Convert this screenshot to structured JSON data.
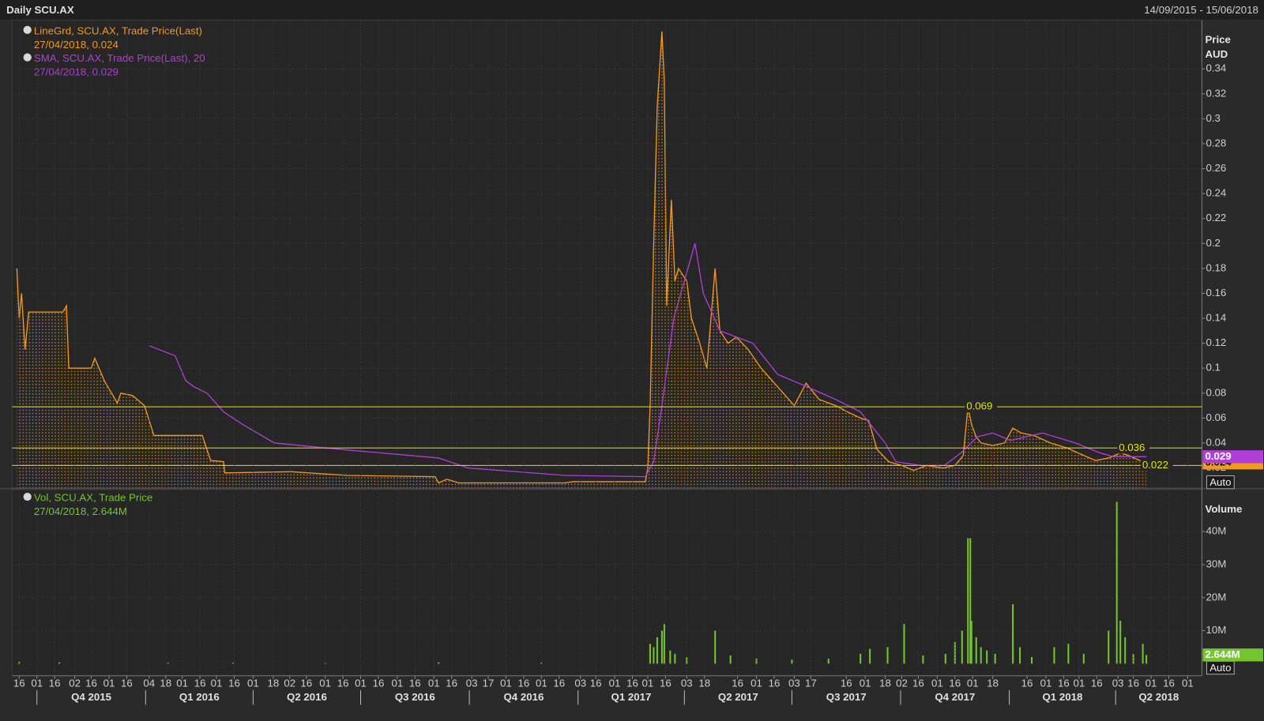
{
  "header": {
    "title": "Daily SCU.AX",
    "date_range": "14/09/2015 - 15/06/2018"
  },
  "chart_data": [
    {
      "type": "line",
      "xlim": [
        "2015-09-10",
        "2018-06-13"
      ],
      "ylim": [
        0.004,
        0.379
      ],
      "yticks": [
        0.02,
        0.04,
        0.06,
        0.08,
        0.1,
        0.12,
        0.14,
        0.16,
        0.18,
        0.2,
        0.22,
        0.24,
        0.26,
        0.28,
        0.3,
        0.32,
        0.34
      ],
      "ylabel": "Price",
      "yunit": "AUD",
      "grid": true,
      "scale_button": "Auto",
      "levels": [
        0.069,
        0.036,
        0.022
      ],
      "level_color": "#e6e600",
      "series": [
        {
          "name": "LineGrd, SCU.AX, Trade Price(Last)",
          "legend_value": "27/04/2018, 0.024",
          "color": "#f39a1e",
          "area": true,
          "last_value": 0.024,
          "x": [
            "2015-09-14",
            "2015-09-16",
            "2015-09-18",
            "2015-09-21",
            "2015-09-24",
            "2015-10-23",
            "2015-10-26",
            "2015-10-28",
            "2015-11-16",
            "2015-11-19",
            "2015-11-27",
            "2015-12-08",
            "2015-12-11",
            "2015-12-21",
            "2015-12-31",
            "2016-01-08",
            "2016-02-18",
            "2016-02-25",
            "2016-03-07",
            "2016-03-08",
            "2016-05-03",
            "2016-06-20",
            "2016-09-02",
            "2016-09-05",
            "2016-09-12",
            "2016-09-22",
            "2016-12-21",
            "2016-12-28",
            "2017-02-27",
            "2017-03-01",
            "2017-03-03",
            "2017-03-06",
            "2017-03-09",
            "2017-03-13",
            "2017-03-15",
            "2017-03-17",
            "2017-03-21",
            "2017-03-24",
            "2017-03-27",
            "2017-04-03",
            "2017-04-07",
            "2017-04-14",
            "2017-04-20",
            "2017-04-27",
            "2017-05-01",
            "2017-05-08",
            "2017-05-15",
            "2017-05-25",
            "2017-06-05",
            "2017-06-19",
            "2017-07-03",
            "2017-07-13",
            "2017-07-24",
            "2017-08-07",
            "2017-08-17",
            "2017-08-28",
            "2017-09-04",
            "2017-09-11",
            "2017-09-21",
            "2017-10-02",
            "2017-10-12",
            "2017-10-23",
            "2017-11-06",
            "2017-11-16",
            "2017-11-23",
            "2017-11-27",
            "2017-11-30",
            "2017-12-04",
            "2017-12-08",
            "2017-12-18",
            "2017-12-28",
            "2018-01-04",
            "2018-01-11",
            "2018-01-22",
            "2018-02-05",
            "2018-02-19",
            "2018-03-05",
            "2018-03-15",
            "2018-03-26",
            "2018-04-05",
            "2018-04-12",
            "2018-04-19",
            "2018-04-27"
          ],
          "values": [
            0.18,
            0.14,
            0.16,
            0.115,
            0.145,
            0.145,
            0.15,
            0.1,
            0.1,
            0.108,
            0.09,
            0.072,
            0.08,
            0.078,
            0.07,
            0.046,
            0.046,
            0.026,
            0.025,
            0.016,
            0.017,
            0.014,
            0.013,
            0.008,
            0.011,
            0.008,
            0.008,
            0.009,
            0.009,
            0.02,
            0.07,
            0.2,
            0.31,
            0.37,
            0.33,
            0.15,
            0.235,
            0.17,
            0.18,
            0.17,
            0.14,
            0.12,
            0.1,
            0.18,
            0.13,
            0.12,
            0.125,
            0.115,
            0.1,
            0.085,
            0.07,
            0.088,
            0.075,
            0.07,
            0.065,
            0.06,
            0.058,
            0.035,
            0.025,
            0.022,
            0.018,
            0.022,
            0.02,
            0.022,
            0.03,
            0.069,
            0.055,
            0.045,
            0.04,
            0.038,
            0.04,
            0.052,
            0.048,
            0.046,
            0.04,
            0.036,
            0.03,
            0.026,
            0.028,
            0.032,
            0.03,
            0.027,
            0.024
          ]
        },
        {
          "name": "SMA, SCU.AX, Trade Price(Last), 20",
          "legend_value": "27/04/2018, 0.029",
          "color": "#b03fd6",
          "last_value": 0.029,
          "x": [
            "2016-01-04",
            "2016-01-26",
            "2016-02-04",
            "2016-02-11",
            "2016-02-22",
            "2016-03-07",
            "2016-03-23",
            "2016-04-19",
            "2016-06-13",
            "2016-09-05",
            "2016-09-30",
            "2016-12-21",
            "2017-02-27",
            "2017-03-06",
            "2017-03-13",
            "2017-03-23",
            "2017-04-10",
            "2017-04-17",
            "2017-05-01",
            "2017-05-29",
            "2017-06-19",
            "2017-07-14",
            "2017-08-07",
            "2017-08-28",
            "2017-09-18",
            "2017-09-27",
            "2017-10-18",
            "2017-11-07",
            "2017-11-21",
            "2017-12-05",
            "2017-12-18",
            "2018-01-02",
            "2018-01-29",
            "2018-02-26",
            "2018-03-19",
            "2018-03-30",
            "2018-04-27"
          ],
          "values": [
            0.118,
            0.11,
            0.09,
            0.085,
            0.08,
            0.065,
            0.055,
            0.04,
            0.035,
            0.028,
            0.02,
            0.014,
            0.013,
            0.025,
            0.07,
            0.14,
            0.2,
            0.16,
            0.13,
            0.12,
            0.095,
            0.085,
            0.075,
            0.065,
            0.04,
            0.025,
            0.022,
            0.022,
            0.032,
            0.045,
            0.048,
            0.042,
            0.048,
            0.04,
            0.032,
            0.029,
            0.029
          ]
        }
      ]
    },
    {
      "type": "bar",
      "xlim": [
        "2015-09-10",
        "2018-06-13"
      ],
      "ylim": [
        0,
        52000000
      ],
      "yticks": [
        {
          "value": 10000000,
          "label": "10M"
        },
        {
          "value": 20000000,
          "label": "20M"
        },
        {
          "value": 30000000,
          "label": "30M"
        },
        {
          "value": 40000000,
          "label": "40M"
        }
      ],
      "ylabel": "Volume",
      "grid": true,
      "scale_button": "Auto",
      "xticks": [
        {
          "value": "2015-09-16",
          "label": "16"
        },
        {
          "value": "2015-10-01",
          "label": "01"
        },
        {
          "value": "2015-10-16",
          "label": "16"
        },
        {
          "value": "2015-11-02",
          "label": "02"
        },
        {
          "value": "2015-11-16",
          "label": "16"
        },
        {
          "value": "2015-12-01",
          "label": "01"
        },
        {
          "value": "2015-12-16",
          "label": "16"
        },
        {
          "value": "2016-01-04",
          "label": "04"
        },
        {
          "value": "2016-01-18",
          "label": "18"
        },
        {
          "value": "2016-02-01",
          "label": "01"
        },
        {
          "value": "2016-02-16",
          "label": "16"
        },
        {
          "value": "2016-03-01",
          "label": "01"
        },
        {
          "value": "2016-03-16",
          "label": "16"
        },
        {
          "value": "2016-04-01",
          "label": "01"
        },
        {
          "value": "2016-04-18",
          "label": "18"
        },
        {
          "value": "2016-05-02",
          "label": "02"
        },
        {
          "value": "2016-05-16",
          "label": "16"
        },
        {
          "value": "2016-06-01",
          "label": "01"
        },
        {
          "value": "2016-06-16",
          "label": "16"
        },
        {
          "value": "2016-07-01",
          "label": "01"
        },
        {
          "value": "2016-07-16",
          "label": "16"
        },
        {
          "value": "2016-08-01",
          "label": "01"
        },
        {
          "value": "2016-08-16",
          "label": "16"
        },
        {
          "value": "2016-09-01",
          "label": "01"
        },
        {
          "value": "2016-09-16",
          "label": "16"
        },
        {
          "value": "2016-10-03",
          "label": "03"
        },
        {
          "value": "2016-10-17",
          "label": "17"
        },
        {
          "value": "2016-11-01",
          "label": "01"
        },
        {
          "value": "2016-11-16",
          "label": "16"
        },
        {
          "value": "2016-12-01",
          "label": "01"
        },
        {
          "value": "2016-12-16",
          "label": "16"
        },
        {
          "value": "2017-01-03",
          "label": "03"
        },
        {
          "value": "2017-01-16",
          "label": "16"
        },
        {
          "value": "2017-02-01",
          "label": "01"
        },
        {
          "value": "2017-02-16",
          "label": "16"
        },
        {
          "value": "2017-03-01",
          "label": "01"
        },
        {
          "value": "2017-03-16",
          "label": "16"
        },
        {
          "value": "2017-04-03",
          "label": "03"
        },
        {
          "value": "2017-04-18",
          "label": "18"
        },
        {
          "value": "2017-05-16",
          "label": "16"
        },
        {
          "value": "2017-06-01",
          "label": "01"
        },
        {
          "value": "2017-06-16",
          "label": "16"
        },
        {
          "value": "2017-07-03",
          "label": "03"
        },
        {
          "value": "2017-07-17",
          "label": "17"
        },
        {
          "value": "2017-08-16",
          "label": "16"
        },
        {
          "value": "2017-09-01",
          "label": "01"
        },
        {
          "value": "2017-09-18",
          "label": "18"
        },
        {
          "value": "2017-10-02",
          "label": "02"
        },
        {
          "value": "2017-10-16",
          "label": "16"
        },
        {
          "value": "2017-11-01",
          "label": "01"
        },
        {
          "value": "2017-11-16",
          "label": "16"
        },
        {
          "value": "2017-12-01",
          "label": "01"
        },
        {
          "value": "2017-12-18",
          "label": "18"
        },
        {
          "value": "2018-01-16",
          "label": "16"
        },
        {
          "value": "2018-02-01",
          "label": "01"
        },
        {
          "value": "2018-02-16",
          "label": "16"
        },
        {
          "value": "2018-03-01",
          "label": "01"
        },
        {
          "value": "2018-03-16",
          "label": "16"
        },
        {
          "value": "2018-04-03",
          "label": "03"
        },
        {
          "value": "2018-04-16",
          "label": "16"
        },
        {
          "value": "2018-05-01",
          "label": "01"
        },
        {
          "value": "2018-05-16",
          "label": "16"
        },
        {
          "value": "2018-06-01",
          "label": "01"
        }
      ],
      "quarters": [
        {
          "value": "2015-10-01",
          "label": "Q4 2015"
        },
        {
          "value": "2016-01-01",
          "label": "Q1 2016"
        },
        {
          "value": "2016-04-01",
          "label": "Q2 2016"
        },
        {
          "value": "2016-07-01",
          "label": "Q3 2016"
        },
        {
          "value": "2016-10-01",
          "label": "Q4 2016"
        },
        {
          "value": "2017-01-01",
          "label": "Q1 2017"
        },
        {
          "value": "2017-04-01",
          "label": "Q2 2017"
        },
        {
          "value": "2017-07-01",
          "label": "Q3 2017"
        },
        {
          "value": "2017-10-01",
          "label": "Q4 2017"
        },
        {
          "value": "2018-01-01",
          "label": "Q1 2018"
        },
        {
          "value": "2018-04-01",
          "label": "Q2 2018"
        }
      ],
      "series": [
        {
          "name": "Vol, SCU.AX, Trade Price",
          "legend_value": "27/04/2018, 2.644M",
          "color": "#74c62c",
          "last_value": 2644000,
          "last_value_label": "2.644M",
          "x": [
            "2015-09-16",
            "2015-10-20",
            "2016-01-20",
            "2016-03-15",
            "2016-06-01",
            "2016-09-05",
            "2016-12-01",
            "2017-03-03",
            "2017-03-06",
            "2017-03-09",
            "2017-03-13",
            "2017-03-15",
            "2017-03-20",
            "2017-03-24",
            "2017-04-03",
            "2017-04-27",
            "2017-05-10",
            "2017-06-01",
            "2017-07-01",
            "2017-08-01",
            "2017-08-28",
            "2017-09-05",
            "2017-09-20",
            "2017-10-04",
            "2017-10-20",
            "2017-11-08",
            "2017-11-16",
            "2017-11-22",
            "2017-11-27",
            "2017-11-29",
            "2017-11-30",
            "2017-12-04",
            "2017-12-08",
            "2017-12-13",
            "2017-12-20",
            "2018-01-04",
            "2018-01-10",
            "2018-01-20",
            "2018-02-08",
            "2018-02-20",
            "2018-03-05",
            "2018-03-26",
            "2018-04-02",
            "2018-04-05",
            "2018-04-09",
            "2018-04-16",
            "2018-04-24",
            "2018-04-27"
          ],
          "values": [
            500000,
            400000,
            300000,
            300000,
            200000,
            400000,
            300000,
            6000000,
            5000000,
            8000000,
            10000000,
            12000000,
            4000000,
            3000000,
            2000000,
            10000000,
            2500000,
            1500000,
            1200000,
            1500000,
            3000000,
            4500000,
            5000000,
            12000000,
            2500000,
            3000000,
            6500000,
            10000000,
            38000000,
            38000000,
            13000000,
            8000000,
            5000000,
            4000000,
            3000000,
            18000000,
            5000000,
            2000000,
            5000000,
            6000000,
            3000000,
            10000000,
            49000000,
            13000000,
            8000000,
            3000000,
            6000000,
            2644000
          ]
        }
      ]
    }
  ]
}
